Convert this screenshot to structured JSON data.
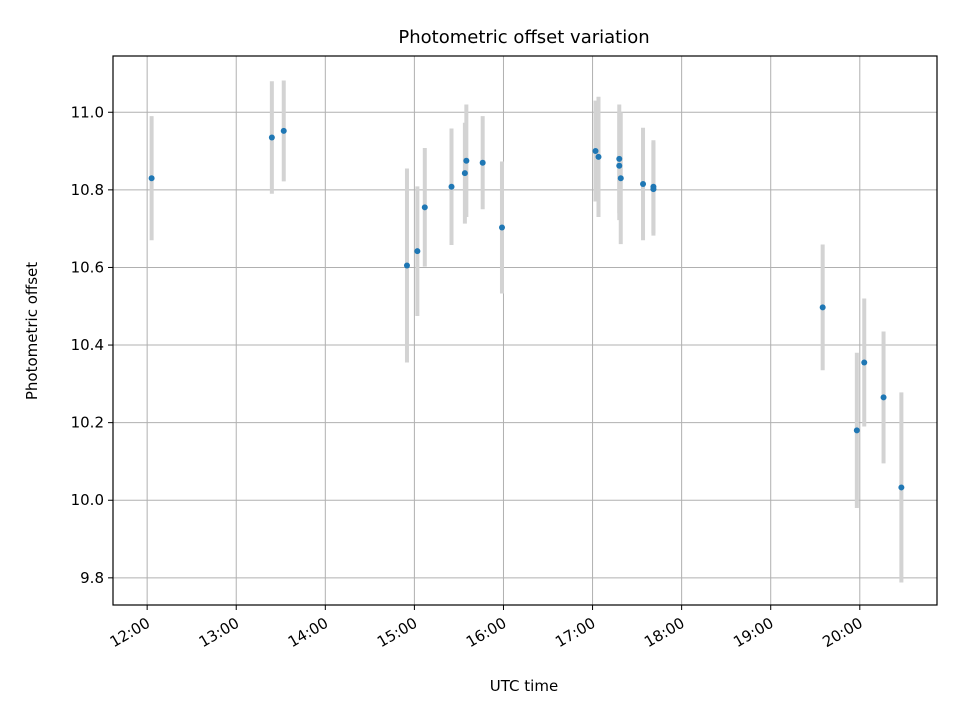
{
  "chart_data": {
    "type": "scatter",
    "title": "Photometric offset variation",
    "xlabel": "UTC time",
    "ylabel": "Photometric offset",
    "x_ticks": [
      "12:00",
      "13:00",
      "14:00",
      "15:00",
      "16:00",
      "17:00",
      "18:00",
      "19:00",
      "20:00"
    ],
    "y_ticks": [
      "9.8",
      "10.0",
      "10.2",
      "10.4",
      "10.6",
      "10.8",
      "11.0"
    ],
    "xlim": [
      "11:37",
      "20:52"
    ],
    "ylim": [
      9.73,
      11.145
    ],
    "grid": true,
    "colors": {
      "marker": "#1f77b4",
      "errorbar": "#d3d3d3",
      "grid": "#b0b0b0"
    },
    "points": [
      {
        "x": "12:03",
        "y": 10.83,
        "yerr": 0.16
      },
      {
        "x": "13:24",
        "y": 10.935,
        "yerr": 0.145
      },
      {
        "x": "13:32",
        "y": 10.952,
        "yerr": 0.13
      },
      {
        "x": "14:55",
        "y": 10.605,
        "yerr": 0.25
      },
      {
        "x": "15:02",
        "y": 10.642,
        "yerr": 0.167
      },
      {
        "x": "15:07",
        "y": 10.755,
        "yerr": 0.153
      },
      {
        "x": "15:25",
        "y": 10.808,
        "yerr": 0.15
      },
      {
        "x": "15:34",
        "y": 10.843,
        "yerr": 0.13
      },
      {
        "x": "15:35",
        "y": 10.875,
        "yerr": 0.145
      },
      {
        "x": "15:46",
        "y": 10.87,
        "yerr": 0.12
      },
      {
        "x": "15:59",
        "y": 10.703,
        "yerr": 0.17
      },
      {
        "x": "17:02",
        "y": 10.9,
        "yerr": 0.13
      },
      {
        "x": "17:04",
        "y": 10.885,
        "yerr": 0.155
      },
      {
        "x": "17:18",
        "y": 10.862,
        "yerr": 0.14
      },
      {
        "x": "17:18",
        "y": 10.88,
        "yerr": 0.14
      },
      {
        "x": "17:19",
        "y": 10.83,
        "yerr": 0.17
      },
      {
        "x": "17:34",
        "y": 10.815,
        "yerr": 0.145
      },
      {
        "x": "17:41",
        "y": 10.808,
        "yerr": 0.12
      },
      {
        "x": "17:41",
        "y": 10.802,
        "yerr": 0.12
      },
      {
        "x": "19:35",
        "y": 10.497,
        "yerr": 0.162
      },
      {
        "x": "19:58",
        "y": 10.18,
        "yerr": 0.2
      },
      {
        "x": "20:03",
        "y": 10.355,
        "yerr": 0.165
      },
      {
        "x": "20:16",
        "y": 10.265,
        "yerr": 0.17
      },
      {
        "x": "20:28",
        "y": 10.033,
        "yerr": 0.245
      }
    ]
  }
}
